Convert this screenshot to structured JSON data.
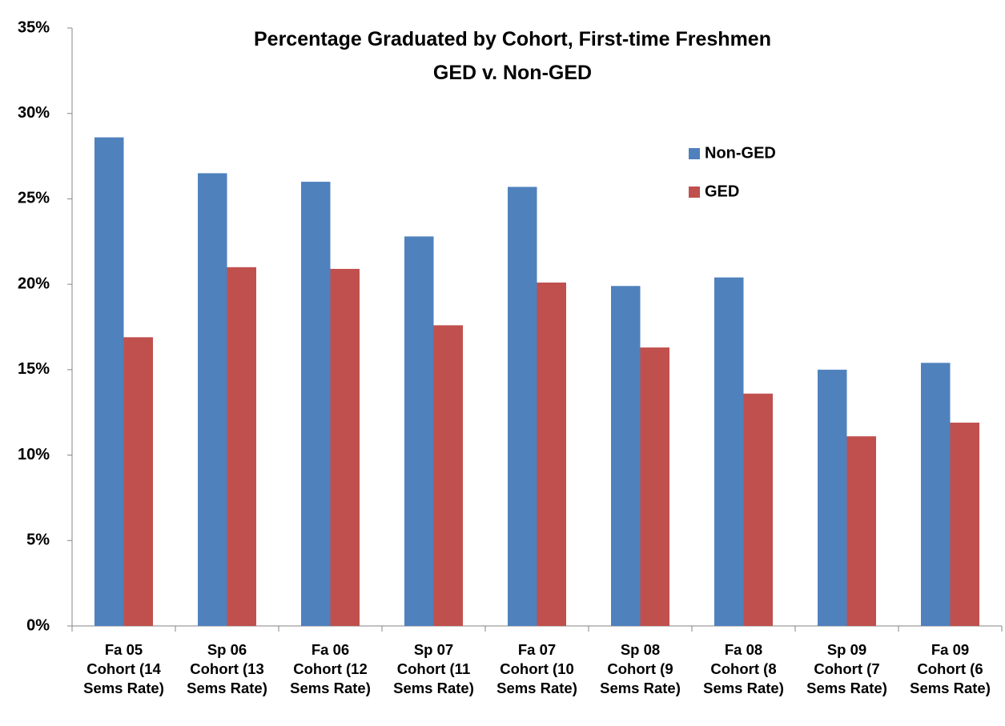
{
  "chart_data": {
    "type": "bar",
    "title": "Percentage Graduated by Cohort, First-time Freshmen\nGED v. Non-GED",
    "categories": [
      "Fa 05\nCohort (14\nSems Rate)",
      "Sp 06\nCohort (13\nSems Rate)",
      "Fa 06\nCohort (12\nSems Rate)",
      "Sp 07\nCohort (11\nSems Rate)",
      "Fa 07\nCohort (10\nSems Rate)",
      "Sp 08\nCohort (9\nSems Rate)",
      "Fa 08\nCohort (8\nSems Rate)",
      "Sp 09\nCohort (7\nSems Rate)",
      "Fa 09\nCohort (6\nSems Rate)"
    ],
    "series": [
      {
        "name": "Non-GED",
        "color": "#4f81bd",
        "values": [
          28.6,
          26.5,
          26.0,
          22.8,
          25.7,
          19.9,
          20.4,
          15.0,
          15.4
        ]
      },
      {
        "name": "GED",
        "color": "#c0504d",
        "values": [
          16.9,
          21.0,
          20.9,
          17.6,
          20.1,
          16.3,
          13.6,
          11.1,
          11.9
        ]
      }
    ],
    "ylim": [
      0,
      35
    ],
    "yticks": [
      {
        "value": 0,
        "label": "0%"
      },
      {
        "value": 5,
        "label": "5%"
      },
      {
        "value": 10,
        "label": "10%"
      },
      {
        "value": 15,
        "label": "15%"
      },
      {
        "value": 20,
        "label": "20%"
      },
      {
        "value": 25,
        "label": "25%"
      },
      {
        "value": 30,
        "label": "30%"
      },
      {
        "value": 35,
        "label": "35%"
      }
    ],
    "grid": false,
    "legend": "upper-right"
  }
}
